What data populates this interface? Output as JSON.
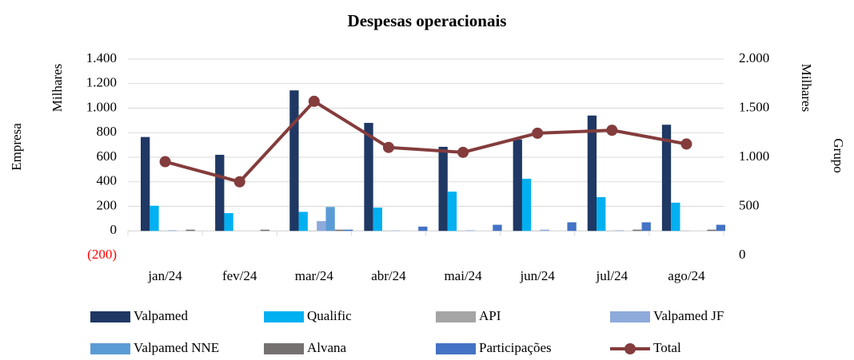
{
  "chart_data": {
    "type": "bar",
    "title": "Despesas operacionais",
    "y_label": "Empresa",
    "y_unit": "Milhares",
    "y2_label": "Grupo",
    "y2_unit": "Milhares",
    "categories": [
      "jan/24",
      "fev/24",
      "mar/24",
      "abr/24",
      "mai/24",
      "jun/24",
      "jul/24",
      "ago/24"
    ],
    "series": [
      {
        "name": "Valpamed",
        "color": "#1f3864",
        "type": "bar",
        "values": [
          765,
          620,
          1145,
          880,
          685,
          745,
          940,
          865
        ]
      },
      {
        "name": "Qualific",
        "color": "#00b0f0",
        "type": "bar",
        "values": [
          205,
          145,
          155,
          190,
          320,
          425,
          275,
          230
        ]
      },
      {
        "name": "API",
        "color": "#a5a5a5",
        "type": "bar",
        "values": [
          2,
          0,
          2,
          2,
          2,
          2,
          2,
          2
        ]
      },
      {
        "name": "Valpamed JF",
        "color": "#8eaadb",
        "type": "bar",
        "values": [
          5,
          0,
          80,
          3,
          5,
          10,
          5,
          0
        ]
      },
      {
        "name": "Valpamed NNE",
        "color": "#5b9bd5",
        "type": "bar",
        "values": [
          0,
          0,
          195,
          0,
          0,
          0,
          0,
          0
        ]
      },
      {
        "name": "Alvana",
        "color": "#767171",
        "type": "bar",
        "values": [
          10,
          10,
          10,
          0,
          0,
          0,
          10,
          10
        ]
      },
      {
        "name": "Participações",
        "color": "#4472c4",
        "type": "bar",
        "values": [
          0,
          0,
          10,
          35,
          50,
          70,
          70,
          50
        ]
      },
      {
        "name": "Total",
        "color": "#843c3c",
        "type": "line",
        "axis": "y2",
        "values": [
          955,
          750,
          1570,
          1100,
          1050,
          1245,
          1275,
          1135
        ]
      }
    ],
    "ylim": [
      -200,
      1400
    ],
    "yticks": [
      {
        "value": -200,
        "label": "(200)"
      },
      0,
      200,
      400,
      600,
      800,
      {
        "value": 1000,
        "label": "1.000"
      },
      {
        "value": 1200,
        "label": "1.200"
      },
      {
        "value": 1400,
        "label": "1.400"
      }
    ],
    "negative_tick_color": "#ff0000",
    "y2lim": [
      0,
      2000
    ],
    "y2ticks": [
      0,
      500,
      {
        "value": 1000,
        "label": "1.000"
      },
      {
        "value": 1500,
        "label": "1.500"
      },
      {
        "value": 2000,
        "label": "2.000"
      }
    ],
    "grid": true,
    "legend": "bottom"
  }
}
